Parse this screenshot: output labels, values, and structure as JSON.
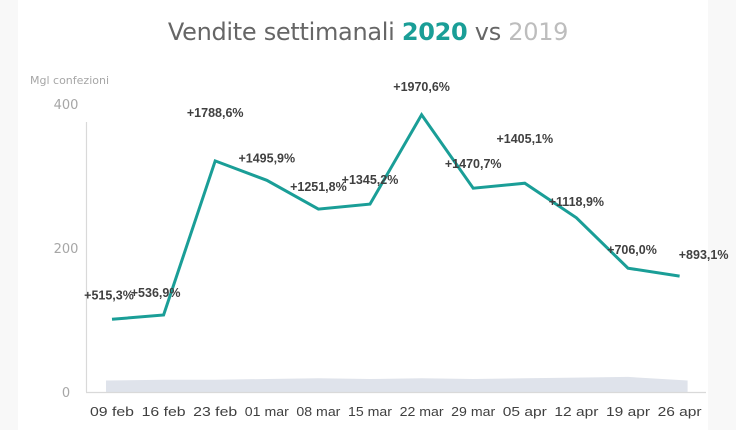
{
  "chart_data": {
    "type": "line",
    "title": {
      "prefix": "Vendite settimanali",
      "year_current": "2020",
      "vs": "vs",
      "year_previous": "2019"
    },
    "ylabel": "Mgl confezioni",
    "xlabel": "",
    "ylim": [
      0,
      400
    ],
    "yticks": [
      0,
      200,
      400
    ],
    "grid": false,
    "categories": [
      "09 feb",
      "16 feb",
      "23 feb",
      "01 mar",
      "08 mar",
      "15 mar",
      "22 mar",
      "29 mar",
      "05 apr",
      "12 apr",
      "19 apr",
      "26 apr"
    ],
    "series": [
      {
        "name": "2020",
        "type": "line",
        "color": "#1a9e97",
        "values": [
          101,
          107,
          321,
          294,
          254,
          261,
          385,
          283,
          290,
          242,
          172,
          161
        ],
        "labels": [
          "+515,3%",
          "+536,9%",
          "+1788,6%",
          "+1495,9%",
          "+1251,8%",
          "+1345,2%",
          "+1970,6%",
          "+1470,7%",
          "+1405,1%",
          "+1118,9%",
          "+706,0%",
          "+893,1%"
        ]
      },
      {
        "name": "2019",
        "type": "area",
        "color": "#dfe3eb",
        "values": [
          16,
          17,
          17,
          18,
          19,
          18,
          19,
          18,
          19,
          20,
          21,
          16
        ]
      }
    ]
  }
}
